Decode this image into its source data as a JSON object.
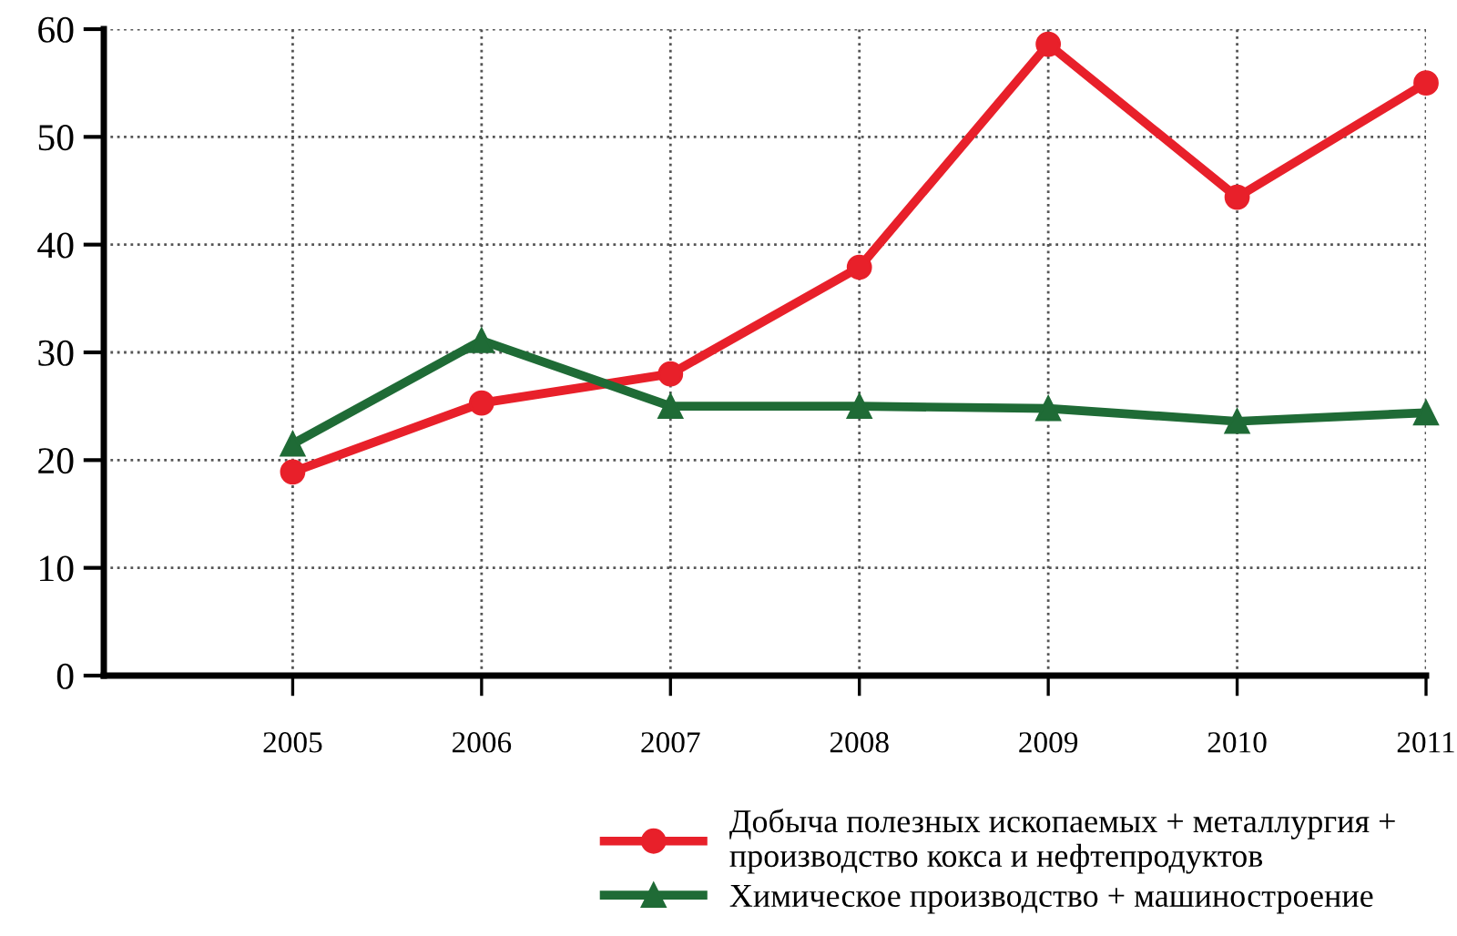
{
  "chart_data": {
    "type": "line",
    "x": [
      2005,
      2006,
      2007,
      2008,
      2009,
      2010,
      2011
    ],
    "series": [
      {
        "name": "Добыча полезных ископаемых + металлургия +\nпроизводство кокса и нефтепродуктов",
        "color": "#e8202a",
        "marker": "circle",
        "values": [
          18.9,
          25.3,
          28.0,
          37.9,
          58.6,
          44.4,
          55.0
        ]
      },
      {
        "name": "Химическое производство + машиностроение",
        "color": "#1f6b36",
        "marker": "triangle",
        "values": [
          21.5,
          31.1,
          25.0,
          25.0,
          24.8,
          23.6,
          24.4
        ]
      }
    ],
    "xlim": [
      2004,
      2011
    ],
    "xticks": [
      2005,
      2006,
      2007,
      2008,
      2009,
      2010,
      2011
    ],
    "ylim": [
      0,
      60
    ],
    "yticks": [
      0,
      10,
      20,
      30,
      40,
      50,
      60
    ],
    "grid": true,
    "legend": "bottom right",
    "line_style": "solid"
  }
}
